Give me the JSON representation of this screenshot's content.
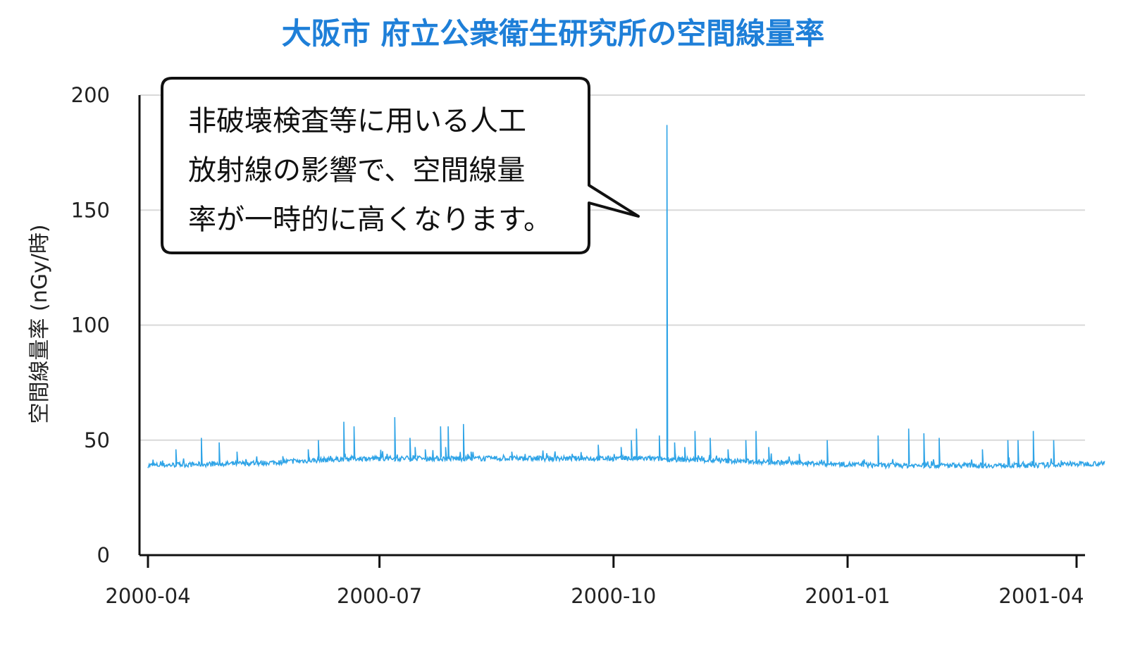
{
  "chart_data": {
    "type": "line",
    "title": "大阪市 府立公衆衛生研究所の空間線量率",
    "xlabel": "",
    "ylabel": "空間線量率 (nGy/時)",
    "ylim": [
      0,
      200
    ],
    "yticks": [
      "0",
      "50",
      "100",
      "150",
      "200"
    ],
    "xticks": [
      "2000-04",
      "2000-07",
      "2000-10",
      "2001-01",
      "2001-04"
    ],
    "xrange": [
      "2000-04-01",
      "2001-04-15"
    ],
    "grid": true,
    "series": [
      {
        "name": "",
        "color": "#2fa4e7",
        "baseline": [
          [
            "2000-04-01",
            39
          ],
          [
            "2000-05-15",
            40
          ],
          [
            "2000-06-01",
            41
          ],
          [
            "2000-06-20",
            42
          ],
          [
            "2000-07-10",
            42
          ],
          [
            "2000-08-15",
            42
          ],
          [
            "2000-09-15",
            42
          ],
          [
            "2000-10-15",
            42
          ],
          [
            "2000-11-15",
            41
          ],
          [
            "2000-12-15",
            40
          ],
          [
            "2001-01-15",
            39
          ],
          [
            "2001-02-15",
            39
          ],
          [
            "2001-03-15",
            39
          ],
          [
            "2001-04-12",
            40
          ]
        ],
        "spikes": [
          [
            "2000-04-12",
            46
          ],
          [
            "2000-04-22",
            51
          ],
          [
            "2000-04-29",
            49
          ],
          [
            "2000-05-06",
            45
          ],
          [
            "2000-05-24",
            43
          ],
          [
            "2000-06-03",
            46
          ],
          [
            "2000-06-07",
            50
          ],
          [
            "2000-06-17",
            58
          ],
          [
            "2000-06-21",
            56
          ],
          [
            "2000-07-07",
            60
          ],
          [
            "2000-07-13",
            51
          ],
          [
            "2000-07-15",
            47
          ],
          [
            "2000-07-19",
            46
          ],
          [
            "2000-07-25",
            56
          ],
          [
            "2000-07-27",
            47
          ],
          [
            "2000-07-28",
            56
          ],
          [
            "2000-08-03",
            57
          ],
          [
            "2000-08-06",
            45
          ],
          [
            "2000-08-22",
            45
          ],
          [
            "2000-09-01",
            43
          ],
          [
            "2000-09-25",
            48
          ],
          [
            "2000-10-04",
            47
          ],
          [
            "2000-10-08",
            50
          ],
          [
            "2000-10-10",
            55
          ],
          [
            "2000-10-19",
            52
          ],
          [
            "2000-10-22",
            187
          ],
          [
            "2000-10-25",
            49
          ],
          [
            "2000-10-29",
            47
          ],
          [
            "2000-11-02",
            54
          ],
          [
            "2000-11-08",
            51
          ],
          [
            "2000-11-15",
            46
          ],
          [
            "2000-11-22",
            50
          ],
          [
            "2000-11-26",
            54
          ],
          [
            "2000-12-01",
            47
          ],
          [
            "2000-12-13",
            44
          ],
          [
            "2000-12-24",
            50
          ],
          [
            "2001-01-13",
            52
          ],
          [
            "2001-01-25",
            55
          ],
          [
            "2001-01-31",
            53
          ],
          [
            "2001-02-06",
            51
          ],
          [
            "2001-02-23",
            46
          ],
          [
            "2001-03-05",
            50
          ],
          [
            "2001-03-09",
            50
          ],
          [
            "2001-03-15",
            54
          ],
          [
            "2001-03-23",
            50
          ]
        ]
      }
    ],
    "annotation": {
      "lines": [
        "非破壊検査等に用いる人工",
        "放射線の影響で、空間線量",
        "率が一時的に高くなります。"
      ],
      "points_to": [
        "2000-10-22",
        150
      ]
    }
  }
}
